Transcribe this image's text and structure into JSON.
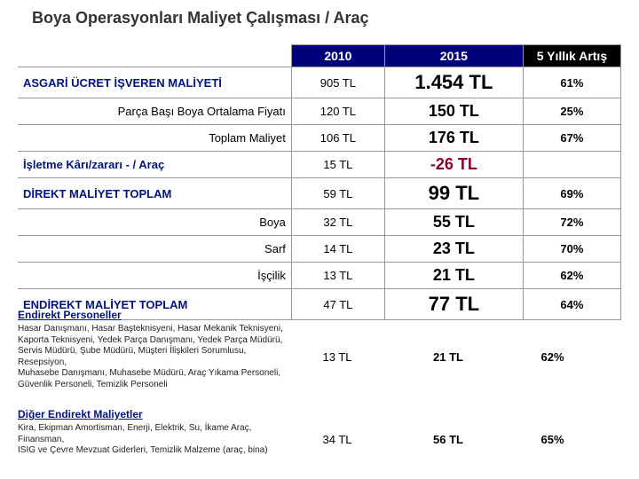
{
  "title": "Boya Operasyonları Maliyet Çalışması / Araç",
  "columns": {
    "y2010": "2010",
    "y2015": "2015",
    "inc": "5 Yıllık Artış"
  },
  "rows": [
    {
      "label": "ASGARİ ÜCRET İŞVEREN MALİYETİ",
      "v10": "905 TL",
      "v15": "1.454 TL",
      "pct": "61%",
      "bold": true,
      "big": true
    },
    {
      "label": "Parça Başı Boya Ortalama Fiyatı",
      "v10": "120 TL",
      "v15": "150 TL",
      "pct": "25%",
      "right": true
    },
    {
      "label": "Toplam Maliyet",
      "v10": "106 TL",
      "v15": "176 TL",
      "pct": "67%",
      "right": true
    },
    {
      "label": "İşletme Kârı/zararı - / Araç",
      "v10": "15 TL",
      "v15": "-26 TL",
      "pct": "",
      "bold": true,
      "neg": true
    },
    {
      "label": "DİREKT MALİYET TOPLAM",
      "v10": "59 TL",
      "v15": "99 TL",
      "pct": "69%",
      "bold": true,
      "big": true
    },
    {
      "label": "Boya",
      "v10": "32 TL",
      "v15": "55 TL",
      "pct": "72%",
      "right": true
    },
    {
      "label": "Sarf",
      "v10": "14 TL",
      "v15": "23 TL",
      "pct": "70%",
      "right": true
    },
    {
      "label": "İşçilik",
      "v10": "13 TL",
      "v15": "21 TL",
      "pct": "62%",
      "right": true
    },
    {
      "label": "ENDİREKT MALİYET TOPLAM",
      "v10": "47 TL",
      "v15": "77 TL",
      "pct": "64%",
      "bold": true,
      "big": true
    }
  ],
  "f1": {
    "hdr": "Endirekt Personeller",
    "lines": [
      "Hasar Danışmanı, Hasar Başteknisyeni, Hasar Mekanik Teknisyeni, Kaporta Teknisyeni, Yedek Parça Danışmanı, Yedek Parça Müdürü,",
      "Servis Müdürü, Şube Müdürü, Müşteri İlişkileri Sorumlusu, Resepsiyon,",
      "Muhasebe Danışmanı, Muhasebe Müdürü, Araç Yıkama Personeli,",
      "Güvenlik Personeli, Temizlik Personeli"
    ],
    "v10": "13 TL",
    "v15": "21 TL",
    "pct": "62%"
  },
  "f2": {
    "hdr": "Diğer Endirekt Maliyetler",
    "lines": [
      "Kira, Ekipman Amortisman, Enerji, Elektrik, Su, İkame Araç, Finansman,",
      "ISIG ve Çevre Mevzuat Giderleri, Temizlik Malzeme (araç, bina)"
    ],
    "v10": "34 TL",
    "v15": "56 TL",
    "pct": "65%"
  }
}
